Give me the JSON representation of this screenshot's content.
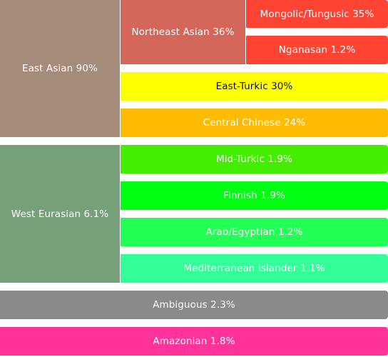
{
  "chart_data": {
    "type": "treemap",
    "groups": [
      {
        "label": "East Asian 90%",
        "color": "#a58b79",
        "children": [
          {
            "label": "Northeast Asian 36%",
            "color": "#d4665a",
            "children": [
              {
                "label": "Mongolic/Tungusic 35%",
                "color": "#ff4433"
              },
              {
                "label": "Nganasan 1.2%",
                "color": "#ff4433"
              }
            ]
          },
          {
            "label": "East-Turkic 30%",
            "color": "#ffff00"
          },
          {
            "label": "Central Chinese 24%",
            "color": "#ffbb00"
          }
        ]
      },
      {
        "label": "West Eurasian 6.1%",
        "color": "#75a07a",
        "children": [
          {
            "label": "Mid-Turkic 1.9%",
            "color": "#44ee00"
          },
          {
            "label": "Finnish 1.9%",
            "color": "#00ff11"
          },
          {
            "label": "Arab/Egyptian 1.2%",
            "color": "#22ff55"
          },
          {
            "label": "Mediterranean Islander 1.1%",
            "color": "#33ff99"
          }
        ]
      },
      {
        "label": "Ambiguous 2.3%",
        "color": "#8a8a8a"
      },
      {
        "label": "Amazonian 1.8%",
        "color": "#ff3399"
      }
    ]
  }
}
